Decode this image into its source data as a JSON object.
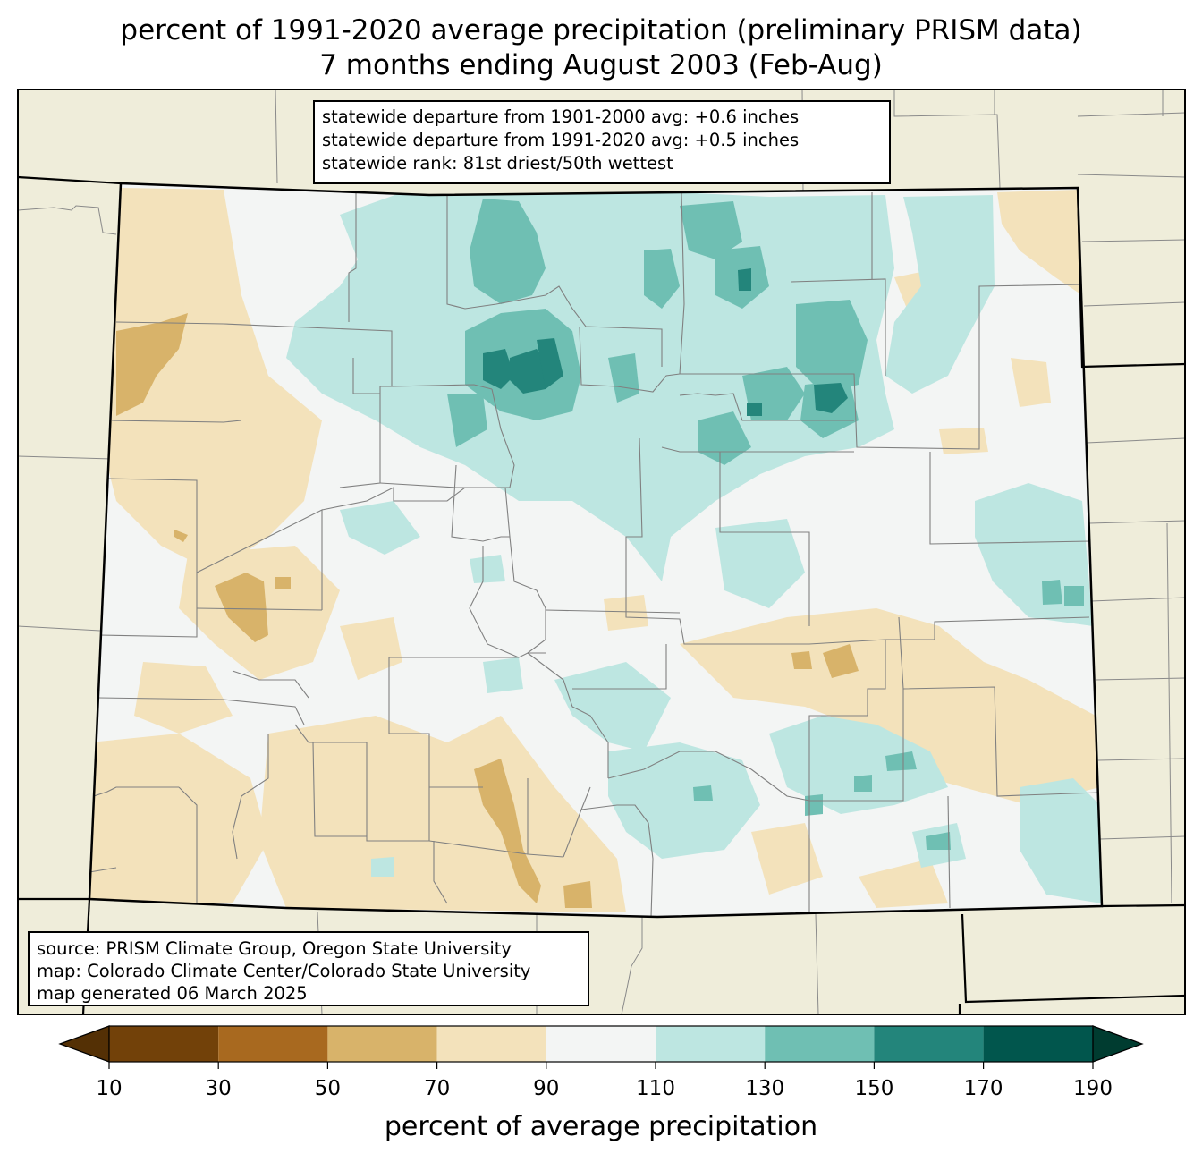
{
  "title": {
    "line1": "percent of 1991-2020 average precipitation (preliminary PRISM data)",
    "line2": "7 months ending August 2003 (Feb-Aug)"
  },
  "stats": {
    "line1": "statewide departure from 1901-2000 avg: +0.6 inches",
    "line2": "statewide departure from 1991-2020 avg: +0.5 inches",
    "line3": "statewide rank: 81st driest/50th wettest"
  },
  "source": {
    "line1": "source: PRISM Climate Group, Oregon State University",
    "line2": "map: Colorado Climate Center/Colorado State University",
    "line3": "map generated 06 March 2025"
  },
  "colorbar": {
    "label": "percent of average precipitation",
    "ticks": [
      "10",
      "30",
      "50",
      "70",
      "90",
      "110",
      "130",
      "150",
      "170",
      "190"
    ],
    "under_color": "#543005",
    "over_color": "#003c30",
    "colors": [
      "#724109",
      "#a8691f",
      "#d8b36a",
      "#f3e2bb",
      "#f3f5f4",
      "#bde6e1",
      "#6fbfb3",
      "#23857b",
      "#01564d"
    ]
  },
  "palette": {
    "background": "#efedda",
    "state_fill": "#f3f5f4",
    "dry_light": "#f3e2bb",
    "dry_mid": "#d8b36a",
    "wet_light": "#bde6e1",
    "wet_mid": "#6fbfb3",
    "wet_dark": "#23857b"
  }
}
